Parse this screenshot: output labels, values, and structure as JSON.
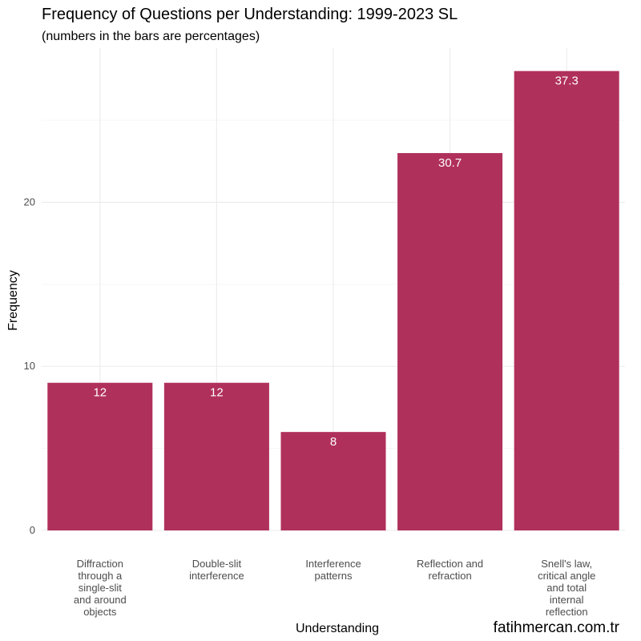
{
  "chart_data": {
    "type": "bar",
    "title": "Frequency of Questions per Understanding: 1999-2023 SL",
    "subtitle": "(numbers in the bars are percentages)",
    "xlabel": "Understanding",
    "ylabel": "Frequency",
    "caption": "fatihmercan.com.tr",
    "categories": [
      [
        "Diffraction",
        "through a",
        "single-slit",
        "and around",
        "objects"
      ],
      [
        "Double-slit",
        "interference"
      ],
      [
        "Interference",
        "patterns"
      ],
      [
        "Reflection and",
        "refraction"
      ],
      [
        "Snell's law,",
        "critical angle",
        "and total",
        "internal",
        "reflection"
      ]
    ],
    "values": [
      9,
      9,
      6,
      23,
      28
    ],
    "data_labels": [
      "12",
      "12",
      "8",
      "30.7",
      "37.3"
    ],
    "ylim": [
      0,
      29.4
    ],
    "y_ticks": [
      0,
      10,
      20
    ],
    "y_tick_labels": [
      "0",
      "10",
      "20"
    ],
    "y_minor_ticks": [
      5,
      15,
      25
    ],
    "bar_color": "#b0305c",
    "grid": true
  }
}
